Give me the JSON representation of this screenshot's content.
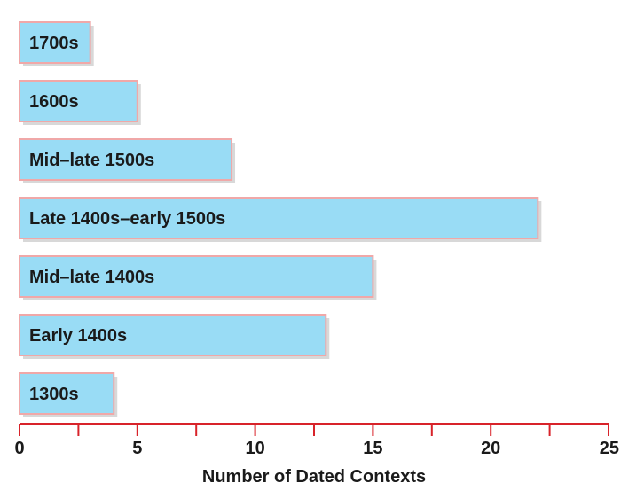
{
  "chart_data": {
    "type": "bar",
    "orientation": "horizontal",
    "categories": [
      "1700s",
      "1600s",
      "Mid–late 1500s",
      "Late 1400s–early 1500s",
      "Mid–late 1400s",
      "Early 1400s",
      "1300s"
    ],
    "values": [
      3,
      5,
      9,
      22,
      15,
      13,
      4
    ],
    "title": "",
    "xlabel": "Number of Dated Contexts",
    "ylabel": "",
    "xlim": [
      0,
      25
    ],
    "xticks": [
      "0",
      "5",
      "10",
      "15",
      "20",
      "25"
    ],
    "grid": false,
    "legend": "none",
    "labels_inside_bars": true
  },
  "colors": {
    "bar_fill": "#99dcf5",
    "bar_stroke": "#f0a8a8",
    "bar_shadow": "#c8c8c8",
    "axis": "#d8232a",
    "text": "#1a1a1a"
  }
}
